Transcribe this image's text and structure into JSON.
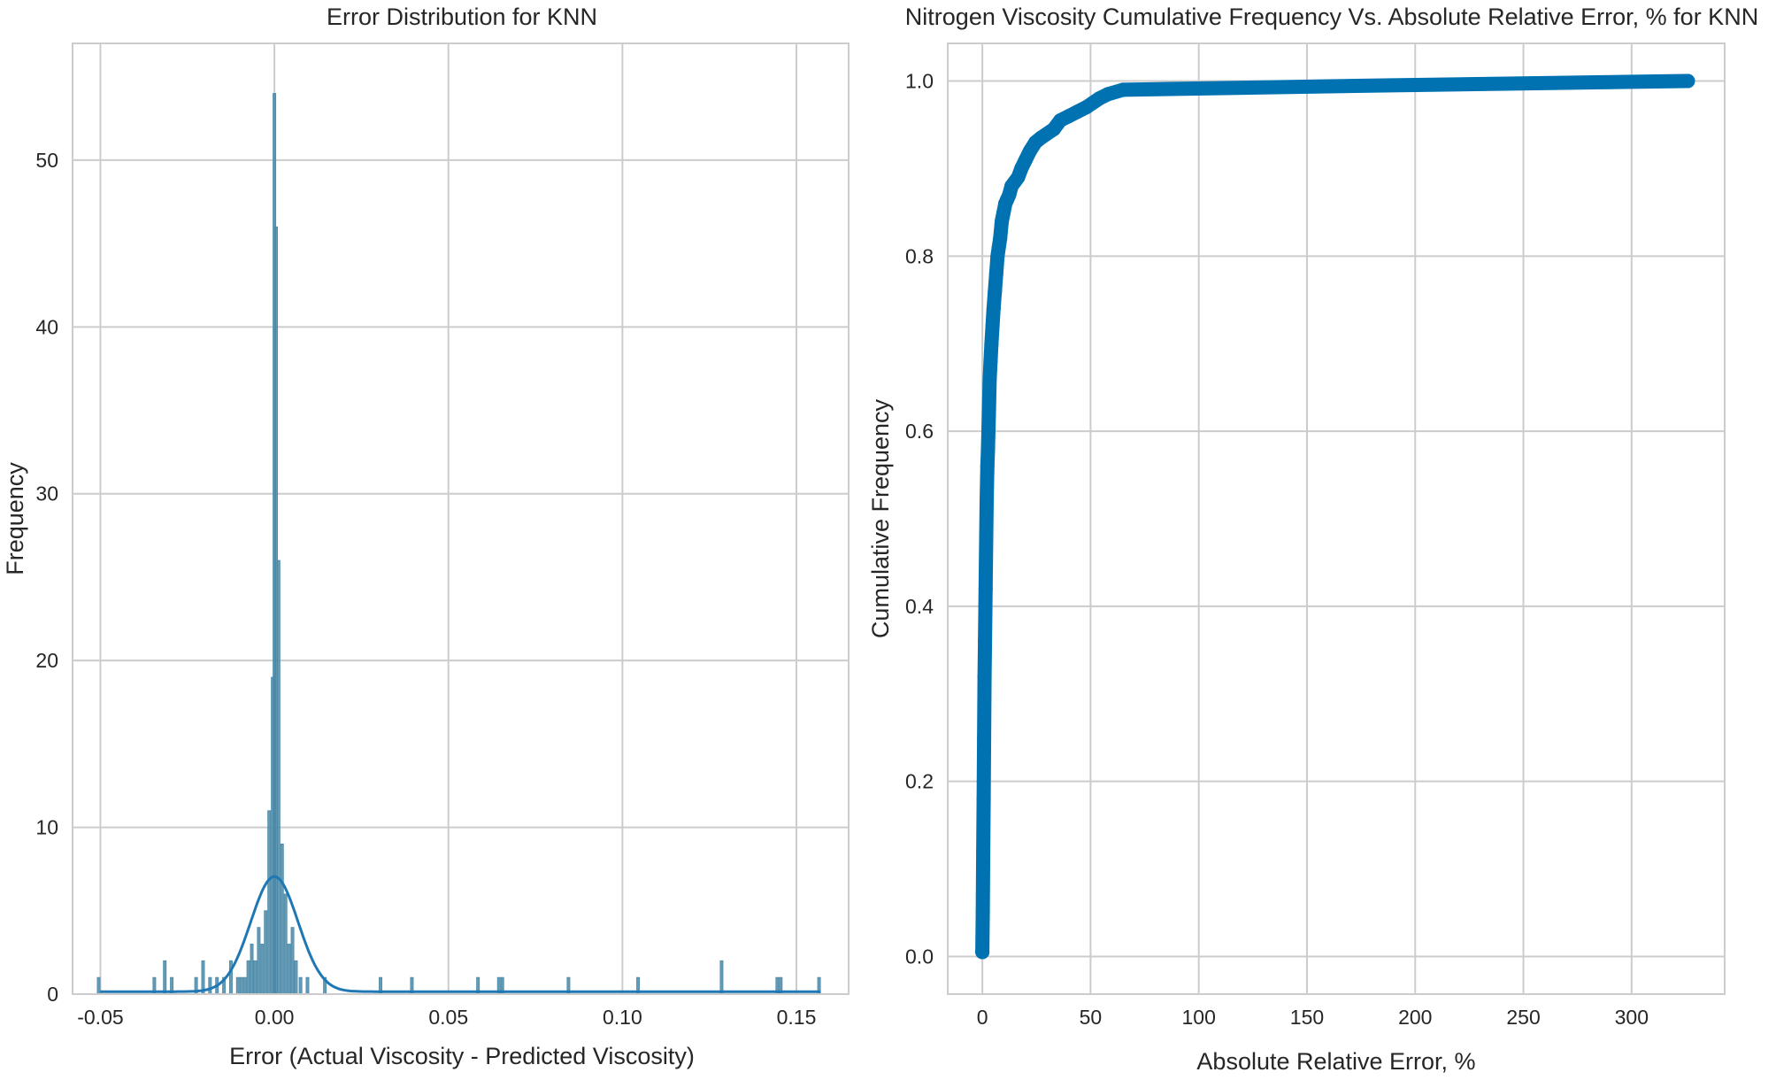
{
  "chart_data": [
    {
      "type": "histogram",
      "title": "Error Distribution for KNN",
      "xlabel": "Error (Actual Viscosity - Predicted Viscosity)",
      "ylabel": "Frequency",
      "xlim": [
        -0.058,
        0.165
      ],
      "ylim": [
        0,
        57
      ],
      "xticks": [
        -0.05,
        0.0,
        0.05,
        0.1,
        0.15
      ],
      "xtick_labels": [
        "-0.05",
        "0.00",
        "0.05",
        "0.10",
        "0.15"
      ],
      "yticks": [
        0,
        10,
        20,
        30,
        40,
        50
      ],
      "ytick_labels": [
        "0",
        "10",
        "20",
        "30",
        "40",
        "50"
      ],
      "grid": true,
      "color": "#4a8aa8",
      "kde_color": "#1f77b4",
      "bins": [
        {
          "x": -0.0505,
          "count": 1
        },
        {
          "x": -0.0345,
          "count": 1
        },
        {
          "x": -0.0315,
          "count": 2
        },
        {
          "x": -0.0295,
          "count": 1
        },
        {
          "x": -0.0225,
          "count": 1
        },
        {
          "x": -0.0205,
          "count": 2
        },
        {
          "x": -0.0185,
          "count": 1
        },
        {
          "x": -0.0165,
          "count": 1
        },
        {
          "x": -0.0145,
          "count": 1
        },
        {
          "x": -0.0125,
          "count": 2
        },
        {
          "x": -0.0105,
          "count": 1
        },
        {
          "x": -0.0095,
          "count": 1
        },
        {
          "x": -0.0085,
          "count": 1
        },
        {
          "x": -0.0075,
          "count": 2
        },
        {
          "x": -0.0065,
          "count": 3
        },
        {
          "x": -0.0055,
          "count": 2
        },
        {
          "x": -0.0045,
          "count": 4
        },
        {
          "x": -0.0035,
          "count": 3
        },
        {
          "x": -0.0025,
          "count": 5
        },
        {
          "x": -0.0015,
          "count": 11
        },
        {
          "x": -0.0005,
          "count": 19
        },
        {
          "x": 0.0,
          "count": 54
        },
        {
          "x": 0.0005,
          "count": 46
        },
        {
          "x": 0.0012,
          "count": 26
        },
        {
          "x": 0.0022,
          "count": 9
        },
        {
          "x": 0.0032,
          "count": 6
        },
        {
          "x": 0.0042,
          "count": 3
        },
        {
          "x": 0.0052,
          "count": 4
        },
        {
          "x": 0.0062,
          "count": 2
        },
        {
          "x": 0.0075,
          "count": 1
        },
        {
          "x": 0.0095,
          "count": 1
        },
        {
          "x": 0.0145,
          "count": 1
        },
        {
          "x": 0.0305,
          "count": 1
        },
        {
          "x": 0.0395,
          "count": 1
        },
        {
          "x": 0.0585,
          "count": 1
        },
        {
          "x": 0.0645,
          "count": 1
        },
        {
          "x": 0.0655,
          "count": 1
        },
        {
          "x": 0.0845,
          "count": 1
        },
        {
          "x": 0.1045,
          "count": 1
        },
        {
          "x": 0.1285,
          "count": 2
        },
        {
          "x": 0.1445,
          "count": 1
        },
        {
          "x": 0.1455,
          "count": 1
        },
        {
          "x": 0.1565,
          "count": 1
        }
      ],
      "kde": {
        "peak_x": 0.0,
        "peak_y": 6.9,
        "sigma": 0.0068
      }
    },
    {
      "type": "line",
      "title": "Nitrogen Viscosity Cumulative Frequency Vs. Absolute Relative Error, % for KNN",
      "xlabel": "Absolute Relative Error, %",
      "ylabel": "Cumulative Frequency",
      "xlim": [
        -16,
        343
      ],
      "ylim": [
        -0.043,
        1.043
      ],
      "xticks": [
        0,
        50,
        100,
        150,
        200,
        250,
        300
      ],
      "xtick_labels": [
        "0",
        "50",
        "100",
        "150",
        "200",
        "250",
        "300"
      ],
      "yticks": [
        0.0,
        0.2,
        0.4,
        0.6,
        0.8,
        1.0
      ],
      "ytick_labels": [
        "0.0",
        "0.2",
        "0.4",
        "0.6",
        "0.8",
        "1.0"
      ],
      "grid": true,
      "color": "#0072b2",
      "series": [
        {
          "x": [
            0.0,
            0.2,
            0.4,
            0.6,
            0.8,
            1.0,
            1.2,
            1.5,
            1.8,
            2.0,
            2.3,
            2.6,
            3.0,
            3.4,
            3.8,
            4.2,
            4.7,
            5.2,
            5.8,
            6.4,
            7.0,
            7.6,
            8.2,
            9.0,
            9.8,
            10.6,
            11.5,
            12.4,
            13.5,
            15.0,
            16.5,
            18.0,
            20.0,
            22.0,
            24.5,
            27.0,
            30.0,
            33.0,
            36.0,
            40.0,
            44.0,
            48.0,
            51.0,
            54.0,
            58.0,
            65.0,
            186.0,
            326.0
          ],
          "y": [
            0.005,
            0.05,
            0.12,
            0.18,
            0.25,
            0.32,
            0.36,
            0.42,
            0.48,
            0.52,
            0.56,
            0.58,
            0.62,
            0.66,
            0.68,
            0.7,
            0.72,
            0.74,
            0.76,
            0.78,
            0.8,
            0.81,
            0.82,
            0.84,
            0.85,
            0.86,
            0.865,
            0.87,
            0.88,
            0.885,
            0.89,
            0.9,
            0.91,
            0.92,
            0.93,
            0.935,
            0.94,
            0.945,
            0.955,
            0.96,
            0.965,
            0.97,
            0.975,
            0.98,
            0.985,
            0.99,
            0.995,
            1.0
          ]
        }
      ]
    }
  ]
}
